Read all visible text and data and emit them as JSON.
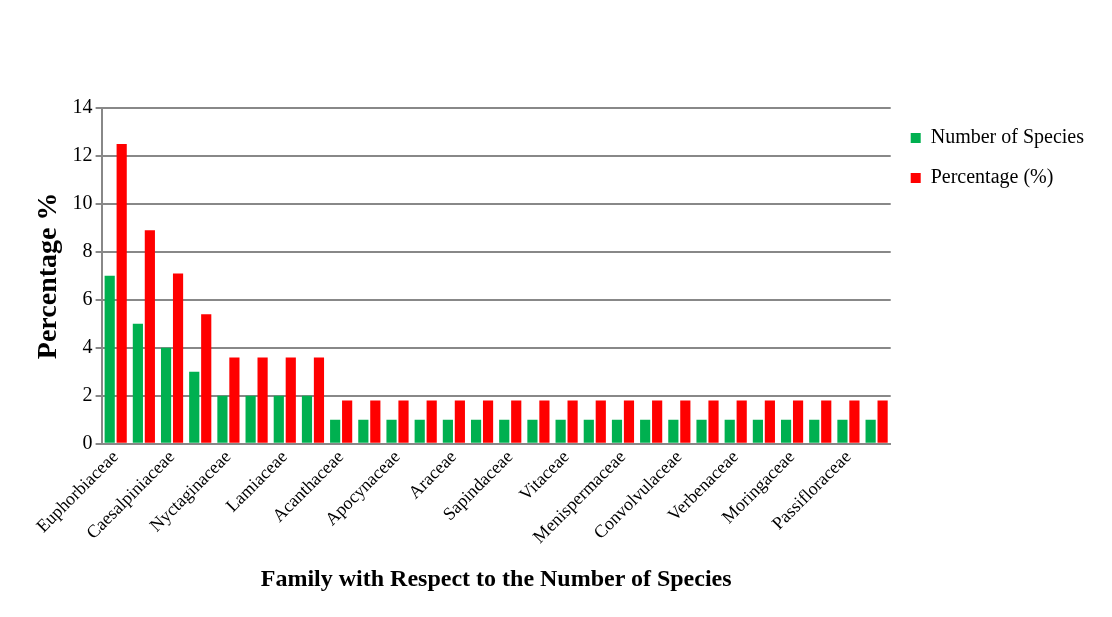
{
  "chart_data": {
    "type": "bar",
    "xlabel": "Family with Respect to the Number of Species",
    "ylabel": "Percentage %",
    "categories": [
      "Euphorbiaceae",
      null,
      "Caesalpiniaceae",
      null,
      "Nyctaginaceae",
      null,
      "Lamiaceae",
      null,
      "Acanthaceae",
      null,
      "Apocynaceae",
      null,
      "Araceae",
      null,
      "Sapindaceae",
      null,
      "Vitaceae",
      null,
      "Menispermaceae",
      null,
      "Convolvulaceae",
      null,
      "Verbenaceae",
      null,
      "Moringaceae",
      null,
      "Passifloraceae",
      null
    ],
    "series": [
      {
        "name": "Number of Species",
        "color": "#00b050",
        "values": [
          7,
          5,
          4,
          3,
          2,
          2,
          2,
          2,
          1,
          1,
          1,
          1,
          1,
          1,
          1,
          1,
          1,
          1,
          1,
          1,
          1,
          1,
          1,
          1,
          1,
          1,
          1,
          1
        ]
      },
      {
        "name": "Percentage (%)",
        "color": "#ff0000",
        "values": [
          12.5,
          8.9,
          7.1,
          5.4,
          3.6,
          3.6,
          3.6,
          3.6,
          1.8,
          1.8,
          1.8,
          1.8,
          1.8,
          1.8,
          1.8,
          1.8,
          1.8,
          1.8,
          1.8,
          1.8,
          1.8,
          1.8,
          1.8,
          1.8,
          1.8,
          1.8,
          1.8,
          1.8
        ]
      }
    ],
    "ylim": [
      0,
      14
    ],
    "yticks": [
      0,
      2,
      4,
      6,
      8,
      10,
      12,
      14
    ],
    "grid": "y",
    "legend": "top right"
  }
}
